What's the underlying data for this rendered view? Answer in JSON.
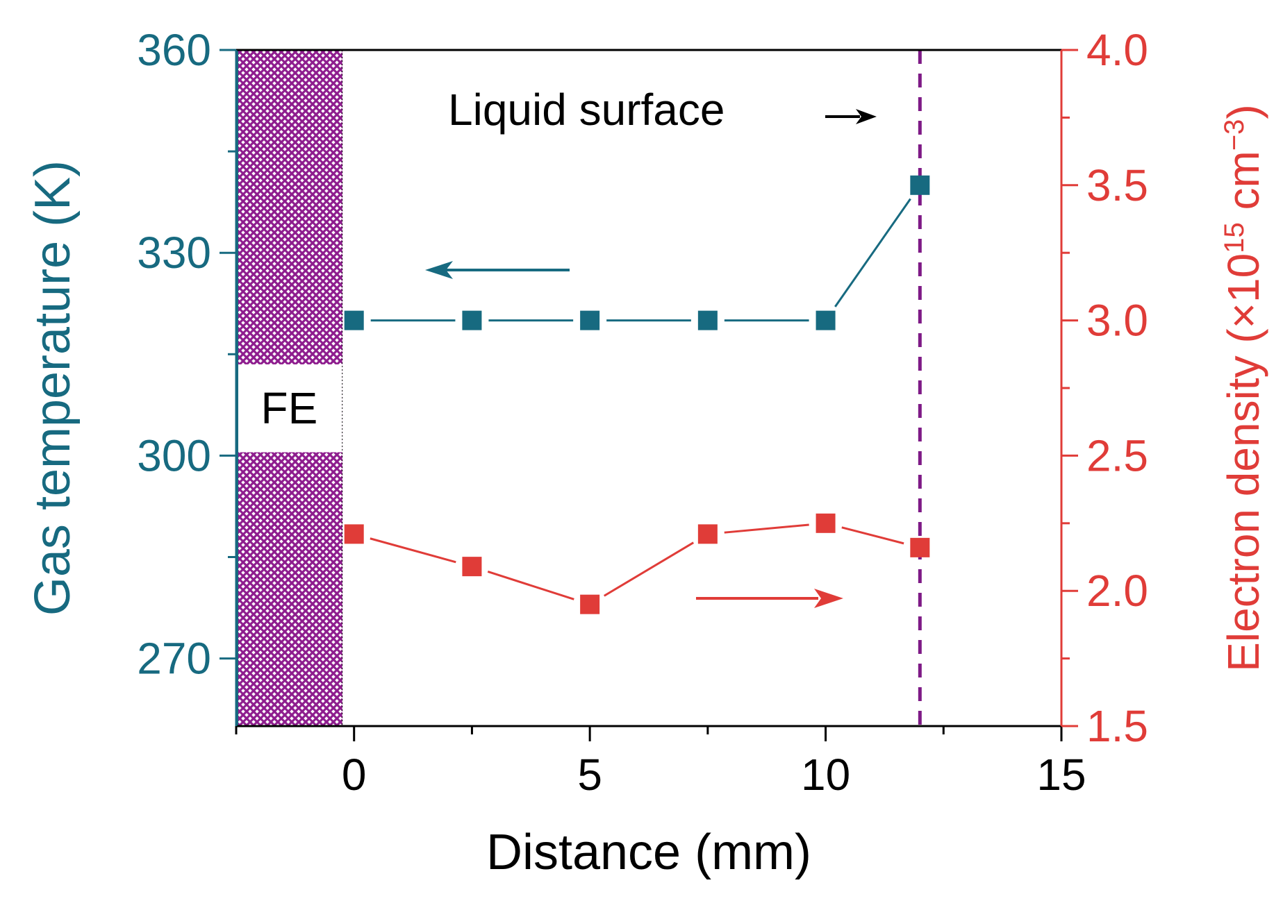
{
  "chart_data": {
    "type": "line",
    "x": [
      0,
      2.5,
      5,
      7.5,
      10,
      12
    ],
    "xlabel": "Distance (mm)",
    "xlim": [
      -2.5,
      15
    ],
    "xticks": [
      0,
      5,
      10,
      15
    ],
    "xtick_labels": [
      "0",
      "5",
      "10",
      "15"
    ],
    "ylabel_left": "Gas temperature (K)",
    "ylim_left": [
      260,
      360
    ],
    "yticks_left": [
      270,
      300,
      330,
      360
    ],
    "ytick_labels_left": [
      "270",
      "300",
      "330",
      "360"
    ],
    "ylabel_right_base": "Electron density (×10",
    "ylabel_right_exp1": "15",
    "ylabel_right_mid": " cm",
    "ylabel_right_exp2": "−3",
    "ylabel_right_end": ")",
    "ylim_right": [
      1.5,
      4.0
    ],
    "yticks_right": [
      1.5,
      2.0,
      2.5,
      3.0,
      3.5,
      4.0
    ],
    "ytick_labels_right": [
      "1.5",
      "2.0",
      "2.5",
      "3.0",
      "3.5",
      "4.0"
    ],
    "series": [
      {
        "axis": "left",
        "color": "#176a80",
        "values": [
          320,
          320,
          320,
          320,
          320,
          340
        ]
      },
      {
        "axis": "right",
        "color": "#e03c38",
        "values": [
          2.21,
          2.09,
          1.95,
          2.21,
          2.25,
          2.16
        ]
      }
    ],
    "annotations": {
      "liquid_surface_label": "Liquid surface",
      "liquid_surface_x": 12,
      "fe_label": "FE"
    },
    "colors": {
      "left_axis": "#176a80",
      "right_axis": "#e03c38",
      "fe_region": "#8e1d8e",
      "liquid_line": "#7e1a86",
      "frame": "#000000"
    },
    "grid": false
  }
}
